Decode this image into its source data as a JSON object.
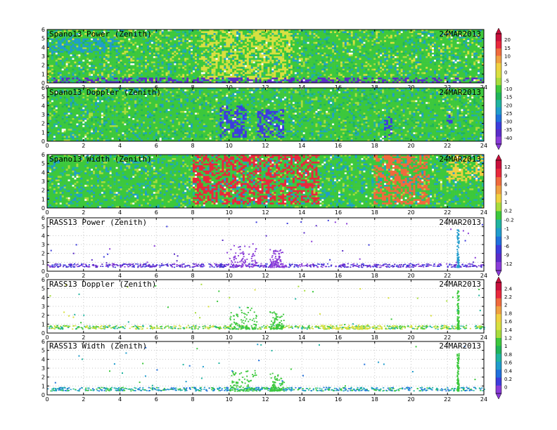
{
  "figure": {
    "date": "24MAR2013",
    "x_ticks": [
      "0",
      "2",
      "4",
      "6",
      "8",
      "10",
      "12",
      "14",
      "16",
      "18",
      "20",
      "22",
      "24"
    ],
    "y_ticks": [
      "0",
      "1",
      "2",
      "3",
      "4",
      "5",
      "6"
    ]
  },
  "colorbars": [
    {
      "id": "cb-snr",
      "labels": [
        "20",
        "15",
        "10",
        "5",
        "0",
        "-5",
        "-10",
        "-15",
        "-20",
        "-25",
        "-30",
        "-35",
        "-40"
      ],
      "colors": [
        "#c8103c",
        "#e8283c",
        "#f06a3c",
        "#f0a040",
        "#f0d040",
        "#d8e040",
        "#a8dc3c",
        "#3cc83c",
        "#20b45a",
        "#20b4a0",
        "#209ccc",
        "#2070dc",
        "#3c3cdc",
        "#5a2cc8",
        "#8a3cd8"
      ]
    },
    {
      "id": "cb-width",
      "labels": [
        "12",
        "9",
        "6",
        "3",
        "1",
        "0.2",
        "-0.2",
        "-1",
        "-3",
        "-6",
        "-9",
        "-12"
      ],
      "colors": [
        "#c8103c",
        "#e8283c",
        "#f06a3c",
        "#f0a040",
        "#f0d040",
        "#a8dc3c",
        "#3cc83c",
        "#20b4a0",
        "#209ccc",
        "#2070dc",
        "#3c3cdc",
        "#5a2cc8",
        "#8a3cd8"
      ]
    },
    {
      "id": "cb-rass",
      "labels": [
        "2.4",
        "2.2",
        "2",
        "1.8",
        "1.6",
        "1.4",
        "1.2",
        "1",
        "0.8",
        "0.6",
        "0.4",
        "0.2",
        "0"
      ],
      "colors": [
        "#c8103c",
        "#e8283c",
        "#f06a3c",
        "#f0a040",
        "#f0d040",
        "#d8e040",
        "#a8dc3c",
        "#3cc83c",
        "#20b45a",
        "#20b4a0",
        "#209ccc",
        "#2070dc",
        "#3c3cdc",
        "#8a3cd8"
      ]
    }
  ],
  "chart_data": [
    {
      "type": "heatmap",
      "title": "Spano13 Power (Zenith)",
      "date_label": "24MAR2013",
      "xlim": [
        0,
        24
      ],
      "ylim": [
        0,
        6
      ],
      "palette": [
        "#3cc83c",
        "#20b45a",
        "#a8dc3c",
        "#d8e040",
        "#20b4a0",
        "#209ccc"
      ],
      "features": [
        {
          "x": [
            8.5,
            13.5
          ],
          "y": [
            0.5,
            6
          ],
          "color": "#d8e040"
        },
        {
          "x": [
            0,
            24
          ],
          "y": [
            0,
            0.6
          ],
          "color": "#5a2cc8"
        },
        {
          "x": [
            0,
            4
          ],
          "y": [
            3.5,
            5
          ],
          "color": "#209ccc"
        }
      ]
    },
    {
      "type": "heatmap",
      "title": "Spano13 Doppler (Zenith)",
      "date_label": "24MAR2013",
      "xlim": [
        0,
        24
      ],
      "ylim": [
        0,
        6
      ],
      "palette": [
        "#3cc83c",
        "#20b45a",
        "#20b4a0",
        "#209ccc",
        "#a8dc3c"
      ],
      "features": [
        {
          "x": [
            9.5,
            11
          ],
          "y": [
            0.5,
            4
          ],
          "color": "#3c3cdc"
        },
        {
          "x": [
            11.5,
            13
          ],
          "y": [
            0.5,
            3.5
          ],
          "color": "#3c3cdc"
        },
        {
          "x": [
            18.5,
            19
          ],
          "y": [
            0.5,
            3
          ],
          "color": "#3c3cdc"
        },
        {
          "x": [
            22,
            22.3
          ],
          "y": [
            2,
            3
          ],
          "color": "#3c3cdc"
        }
      ]
    },
    {
      "type": "heatmap",
      "title": "Spano13 Width (Zenith)",
      "date_label": "24MAR2013",
      "xlim": [
        0,
        24
      ],
      "ylim": [
        0,
        6
      ],
      "palette": [
        "#3cc83c",
        "#a8dc3c",
        "#20b4a0",
        "#209ccc"
      ],
      "features": [
        {
          "x": [
            8,
            15
          ],
          "y": [
            0.5,
            6
          ],
          "color": "#e8283c"
        },
        {
          "x": [
            18,
            21
          ],
          "y": [
            0.5,
            6
          ],
          "color": "#f06a3c"
        },
        {
          "x": [
            22,
            24
          ],
          "y": [
            3,
            6
          ],
          "color": "#f0d040"
        }
      ]
    },
    {
      "type": "scatter",
      "title": "RASS13 Power (Zenith)",
      "date_label": "24MAR2013",
      "xlim": [
        0,
        24
      ],
      "ylim": [
        0,
        6
      ],
      "band_y": [
        0.5,
        0.9
      ],
      "band_colors": [
        "#8a3cd8",
        "#5a2cc8",
        "#3c3cdc"
      ],
      "clusters": [
        {
          "x": [
            10,
            11.5
          ],
          "y": [
            0.5,
            3
          ],
          "color": "#8a3cd8"
        },
        {
          "x": [
            12.2,
            13
          ],
          "y": [
            0.5,
            2.5
          ],
          "color": "#8a3cd8"
        },
        {
          "x": [
            22.5,
            22.6
          ],
          "y": [
            0.5,
            4.8
          ],
          "color": "#209ccc"
        }
      ]
    },
    {
      "type": "scatter",
      "title": "RASS13 Doppler (Zenith)",
      "date_label": "24MAR2013",
      "xlim": [
        0,
        24
      ],
      "ylim": [
        0,
        6
      ],
      "band_y": [
        0.5,
        0.9
      ],
      "band_colors": [
        "#20b4a0",
        "#3cc83c",
        "#a8dc3c",
        "#d8e040"
      ],
      "clusters": [
        {
          "x": [
            10,
            11.5
          ],
          "y": [
            0.5,
            3
          ],
          "color": "#3cc83c"
        },
        {
          "x": [
            12.2,
            13
          ],
          "y": [
            0.5,
            2.5
          ],
          "color": "#3cc83c"
        },
        {
          "x": [
            15,
            18.5
          ],
          "y": [
            0.5,
            1
          ],
          "color": "#d8e040"
        },
        {
          "x": [
            22.5,
            22.6
          ],
          "y": [
            0.5,
            4.8
          ],
          "color": "#3cc83c"
        }
      ]
    },
    {
      "type": "scatter",
      "title": "RASS13 Width (Zenith)",
      "date_label": "24MAR2013",
      "xlim": [
        0,
        24
      ],
      "ylim": [
        0,
        6
      ],
      "band_y": [
        0.5,
        0.9
      ],
      "band_colors": [
        "#209ccc",
        "#20b4a0",
        "#3cc83c",
        "#2070dc"
      ],
      "clusters": [
        {
          "x": [
            10,
            11.5
          ],
          "y": [
            0.5,
            3
          ],
          "color": "#3cc83c"
        },
        {
          "x": [
            12.2,
            13
          ],
          "y": [
            0.5,
            2.5
          ],
          "color": "#3cc83c"
        },
        {
          "x": [
            22.5,
            22.6
          ],
          "y": [
            0.5,
            4.8
          ],
          "color": "#3cc83c"
        }
      ]
    }
  ]
}
